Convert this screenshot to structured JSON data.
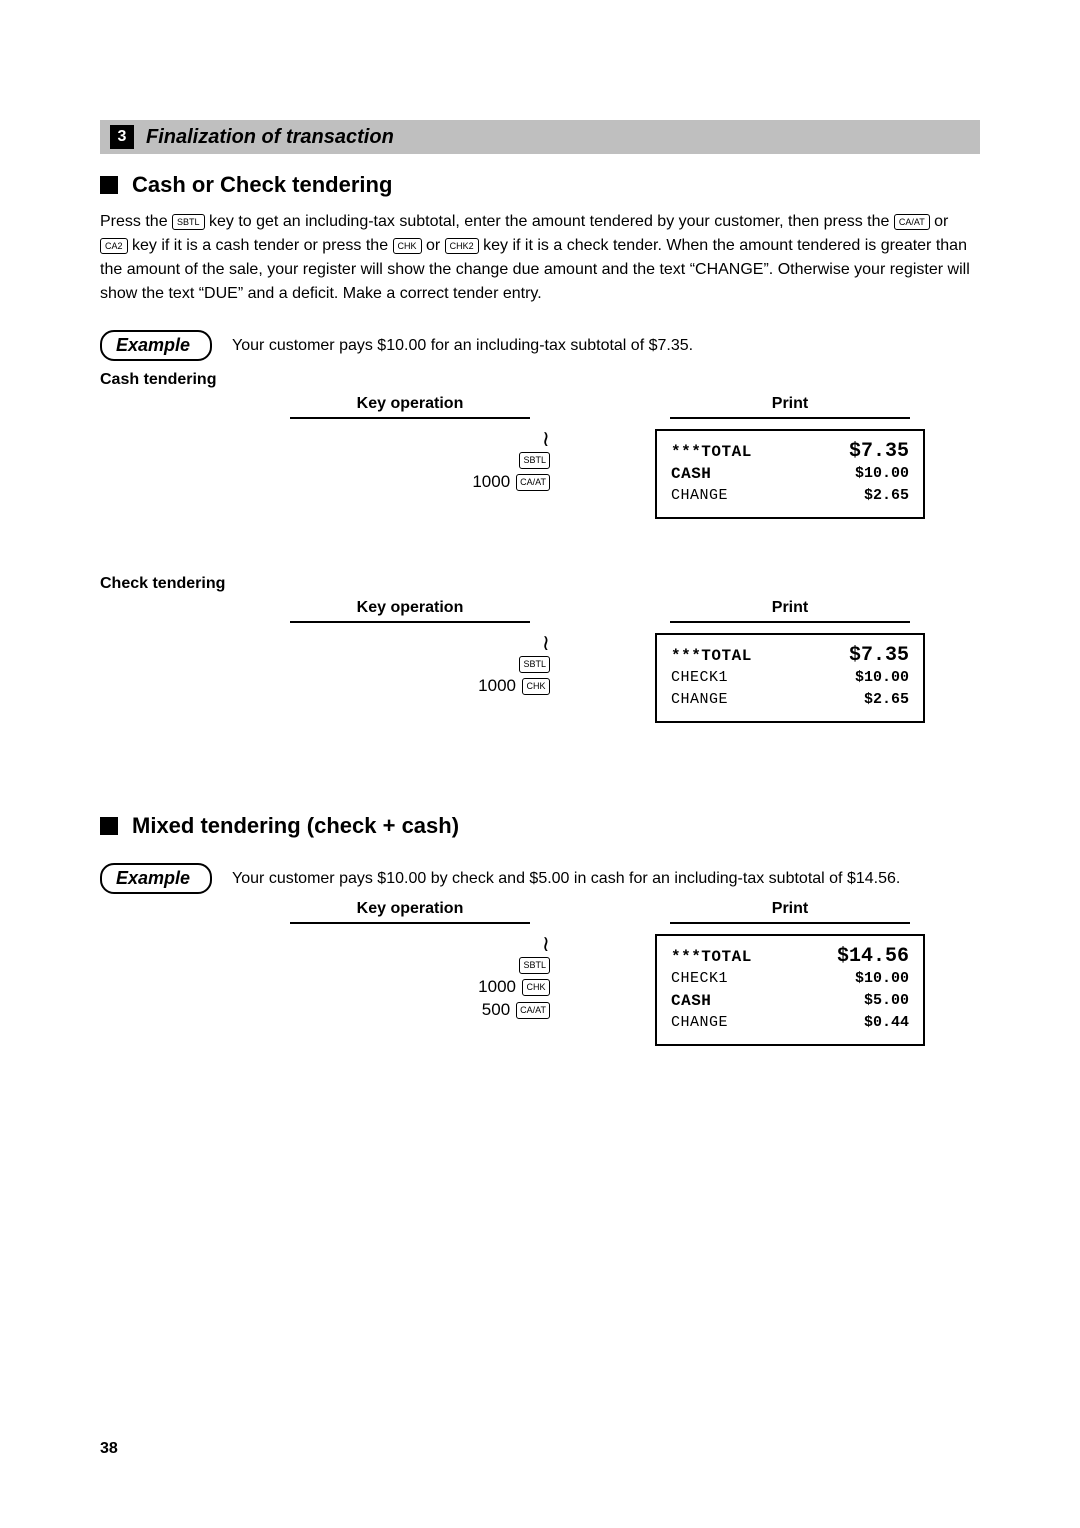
{
  "section": {
    "number": "3",
    "title": "Finalization of transaction"
  },
  "sub1": {
    "title": "Cash or Check tendering"
  },
  "intro": {
    "t1a": "Press the ",
    "k_sbtl": "SBTL",
    "t1b": " key to get an including-tax subtotal, enter the amount tendered by your customer, then press the ",
    "k_caat": "CA/AT",
    "t1c": " or ",
    "k_ca2": "CA2",
    "t1d": " key if it is a cash tender or press the ",
    "k_chk": "CHK",
    "t1e": " or ",
    "k_chk2": "CHK2",
    "t1f": " key if it is a check tender.  When the amount tendered is greater than the amount of the sale, your register will show the change due amount and the text “CHANGE”. Otherwise your register will show the text “DUE” and a deficit. Make a correct tender entry."
  },
  "ex1": {
    "pill": "Example",
    "text": "Your customer pays $10.00 for an including-tax subtotal of $7.35."
  },
  "case_cash": {
    "label": "Cash tendering"
  },
  "case_check": {
    "label": "Check tendering"
  },
  "col_headers": {
    "keyop": "Key operation",
    "print": "Print"
  },
  "keyop1": {
    "wavy": "~",
    "sbtl": "SBTL",
    "n1": "1000",
    "caat": "CA/AT"
  },
  "keyop2": {
    "wavy": "~",
    "sbtl": "SBTL",
    "n1": "1000",
    "chk": "CHK"
  },
  "keyop3": {
    "wavy": "~",
    "sbtl": "SBTL",
    "n1": "1000",
    "chk": "CHK",
    "n2": "500",
    "caat": "CA/AT"
  },
  "rec1": {
    "total_l": "***TOTAL",
    "total_v": "$7.35",
    "cash_l": "CASH",
    "cash_v": "$10.00",
    "change_l": "CHANGE",
    "change_v": "$2.65"
  },
  "rec2": {
    "total_l": "***TOTAL",
    "total_v": "$7.35",
    "chk_l": "CHECK1",
    "chk_v": "$10.00",
    "change_l": "CHANGE",
    "change_v": "$2.65"
  },
  "sub2": {
    "title": "Mixed tendering (check + cash)"
  },
  "ex2": {
    "pill": "Example",
    "text": "Your customer pays $10.00 by check and $5.00 in cash for an including-tax subtotal of $14.56."
  },
  "rec3": {
    "total_l": "***TOTAL",
    "total_v": "$14.56",
    "chk_l": "CHECK1",
    "chk_v": "$10.00",
    "cash_l": "CASH",
    "cash_v": "$5.00",
    "change_l": "CHANGE",
    "change_v": "$0.44"
  },
  "page_num": "38"
}
